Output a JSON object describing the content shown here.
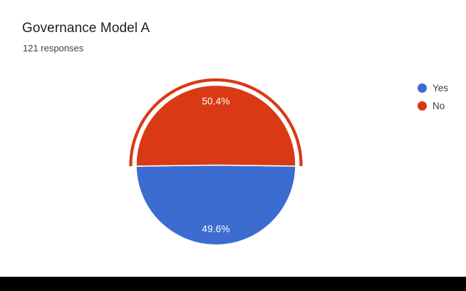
{
  "header": {
    "title": "Governance Model A",
    "subtitle": "121 responses"
  },
  "chart_data": {
    "type": "pie",
    "title": "Governance Model A",
    "subtitle": "121 responses",
    "total_responses": 121,
    "legend_position": "right",
    "start_angle_deg": 90.7,
    "slice_label_color": "#ffffff",
    "slices": [
      {
        "name": "Yes",
        "value": 49.6,
        "label": "49.6%",
        "color": "#3c6cd0",
        "highlighted": false
      },
      {
        "name": "No",
        "value": 50.4,
        "label": "50.4%",
        "color": "#d93a15",
        "highlighted": true
      }
    ]
  },
  "footer": {
    "bar_color": "#000000"
  }
}
